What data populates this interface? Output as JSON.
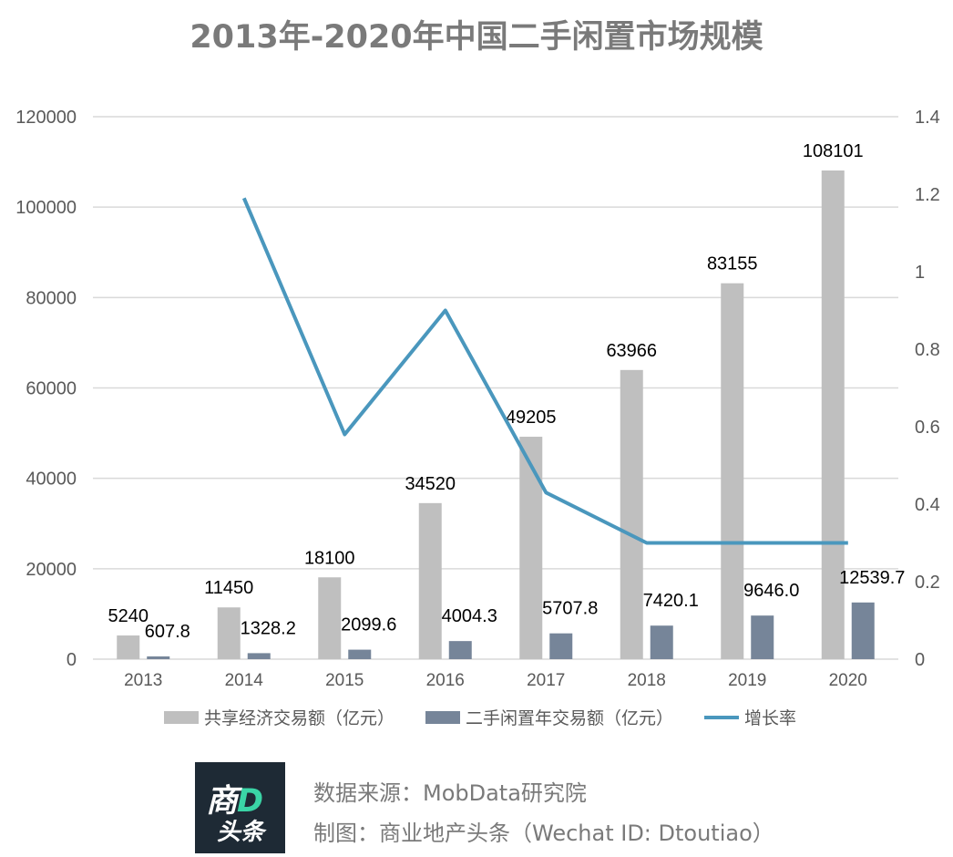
{
  "title": "2013年-2020年中国二手闲置市场规模",
  "chart_data": {
    "type": "bar",
    "categories": [
      "2013",
      "2014",
      "2015",
      "2016",
      "2017",
      "2018",
      "2019",
      "2020"
    ],
    "series": [
      {
        "name": "共享经济交易额（亿元）",
        "kind": "bar",
        "axis": "left",
        "color": "#bfbfbf",
        "values": [
          5240,
          11450,
          18100,
          34520,
          49205,
          63966,
          83155,
          108101
        ],
        "labels": [
          "5240",
          "11450",
          "18100",
          "34520",
          "49205",
          "63966",
          "83155",
          "108101"
        ]
      },
      {
        "name": "二手闲置年交易额（亿元）",
        "kind": "bar",
        "axis": "left",
        "color": "#768599",
        "values": [
          607.8,
          1328.2,
          2099.6,
          4004.3,
          5707.8,
          7420.1,
          9646.0,
          12539.7
        ],
        "labels": [
          "607.8",
          "1328.2",
          "2099.6",
          "4004.3",
          "5707.8",
          "7420.1",
          "9646.0",
          "12539.7"
        ]
      },
      {
        "name": "增长率",
        "kind": "line",
        "axis": "right",
        "color": "#4a97bd",
        "values": [
          null,
          1.19,
          0.58,
          0.9,
          0.43,
          0.3,
          0.3,
          0.3
        ]
      }
    ],
    "y_left": {
      "ylim": [
        0,
        120000
      ],
      "ticks": [
        "0",
        "20000",
        "40000",
        "60000",
        "80000",
        "100000",
        "120000"
      ]
    },
    "y_right": {
      "ylim": [
        0,
        1.4
      ],
      "ticks": [
        "0",
        "0.2",
        "0.4",
        "0.6",
        "0.8",
        "1",
        "1.2",
        "1.4"
      ]
    },
    "grid": true,
    "legend_position": "bottom"
  },
  "footer": {
    "logo_top": "商",
    "logo_top_accent": "D",
    "logo_bottom": "头条",
    "source": "数据来源：MobData研究院",
    "credit": "制图：商业地产头条（Wechat ID: Dtoutiao）"
  }
}
